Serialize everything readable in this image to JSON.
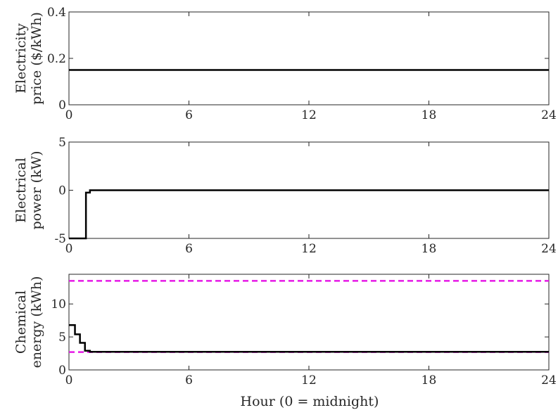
{
  "figure": {
    "xlabel": "Hour (0 = midnight)"
  },
  "colors": {
    "series_line": "#000000",
    "limit_line": "#e619e6",
    "axis": "#262626"
  },
  "chart_data": [
    {
      "type": "line",
      "title": "",
      "ylabel_lines": [
        "Electricity",
        "price ($/kWh)"
      ],
      "xlim": [
        0,
        24
      ],
      "ylim": [
        0,
        0.4
      ],
      "xticks": [
        0,
        6,
        12,
        18,
        24
      ],
      "yticks": [
        0,
        0.2,
        0.4
      ],
      "ytick_labels": [
        "0",
        "0.2",
        "0.4"
      ],
      "grid": false,
      "series": [
        {
          "style": "solid",
          "x": [
            0,
            24
          ],
          "y": [
            0.15,
            0.15
          ]
        }
      ]
    },
    {
      "type": "line",
      "title": "",
      "ylabel_lines": [
        "Electrical",
        "power (kW)"
      ],
      "xlim": [
        0,
        24
      ],
      "ylim": [
        -5,
        5
      ],
      "xticks": [
        0,
        6,
        12,
        18,
        24
      ],
      "yticks": [
        -5,
        0,
        5
      ],
      "ytick_labels": [
        "-5",
        "0",
        "5"
      ],
      "grid": false,
      "series": [
        {
          "style": "solid",
          "x": [
            0,
            0.85,
            0.85,
            1.05,
            1.05,
            24
          ],
          "y": [
            -5,
            -5,
            -0.25,
            -0.25,
            0,
            0
          ]
        }
      ]
    },
    {
      "type": "line",
      "title": "",
      "ylabel_lines": [
        "Chemical",
        "energy (kWh)"
      ],
      "xlim": [
        0,
        24
      ],
      "ylim": [
        0,
        14.5
      ],
      "xticks": [
        0,
        6,
        12,
        18,
        24
      ],
      "yticks": [
        0,
        5,
        10
      ],
      "ytick_labels": [
        "0",
        "5",
        "10"
      ],
      "grid": false,
      "series": [
        {
          "style": "dashed",
          "x": [
            0,
            24
          ],
          "y": [
            13.5,
            13.5
          ]
        },
        {
          "style": "dashed",
          "x": [
            0,
            24
          ],
          "y": [
            2.7,
            2.7
          ]
        },
        {
          "style": "solid",
          "x": [
            0,
            0.3,
            0.3,
            0.55,
            0.55,
            0.8,
            0.8,
            1.05,
            1.05,
            24
          ],
          "y": [
            6.8,
            6.8,
            5.4,
            5.4,
            4.1,
            4.1,
            2.9,
            2.9,
            2.75,
            2.75
          ]
        }
      ]
    }
  ]
}
